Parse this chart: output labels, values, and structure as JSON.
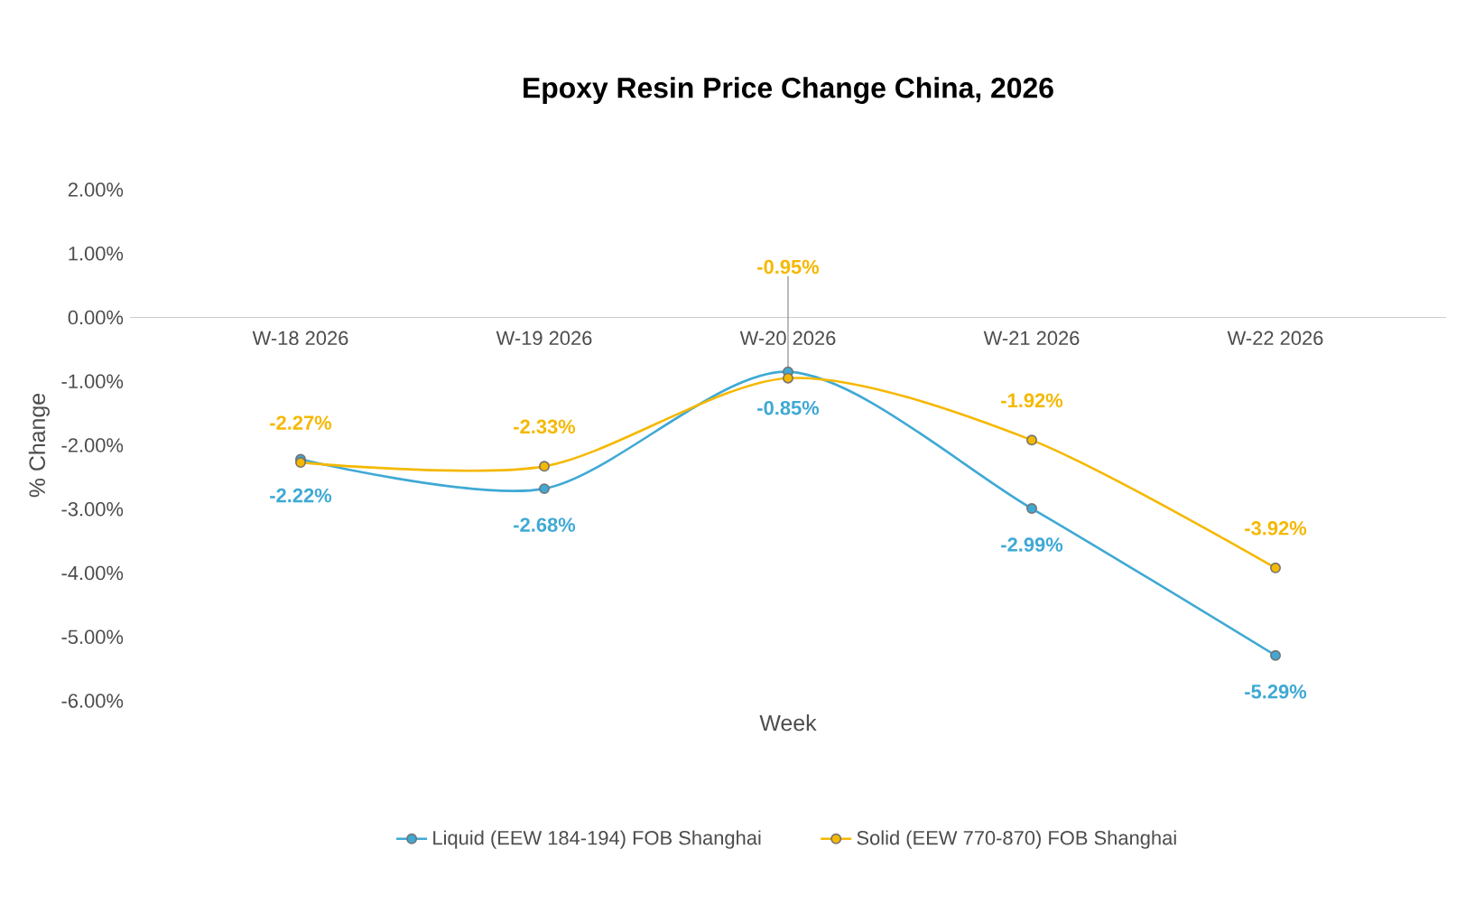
{
  "chart_data": {
    "type": "line",
    "title": "Epoxy Resin Price Change China, 2026",
    "xlabel": "Week",
    "ylabel": "% Change",
    "categories": [
      "W-18 2026",
      "W-19 2026",
      "W-20 2026",
      "W-21 2026",
      "W-22 2026"
    ],
    "series": [
      {
        "name": "Liquid (EEW 184-194) FOB Shanghai",
        "color": "#3fa9d4",
        "values": [
          -2.22,
          -2.68,
          -0.85,
          -2.99,
          -5.29
        ],
        "value_labels": [
          "-2.22%",
          "-2.68%",
          "-0.85%",
          "-2.99%",
          "-5.29%"
        ]
      },
      {
        "name": "Solid (EEW 770-870) FOB Shanghai",
        "color": "#f5b800",
        "values": [
          -2.27,
          -2.33,
          -0.95,
          -1.92,
          -3.92
        ],
        "value_labels": [
          "-2.27%",
          "-2.33%",
          "-0.95%",
          "-1.92%",
          "-3.92%"
        ]
      }
    ],
    "ylim": [
      -6,
      2
    ],
    "yticks": [
      {
        "value": 2,
        "label": "2.00%"
      },
      {
        "value": 1,
        "label": "1.00%"
      },
      {
        "value": 0,
        "label": "0.00%"
      },
      {
        "value": -1,
        "label": "-1.00%"
      },
      {
        "value": -2,
        "label": "-2.00%"
      },
      {
        "value": -3,
        "label": "-3.00%"
      },
      {
        "value": -4,
        "label": "-4.00%"
      },
      {
        "value": -5,
        "label": "-5.00%"
      },
      {
        "value": -6,
        "label": "-6.00%"
      }
    ],
    "marker": "circle",
    "legend": "bottom"
  }
}
